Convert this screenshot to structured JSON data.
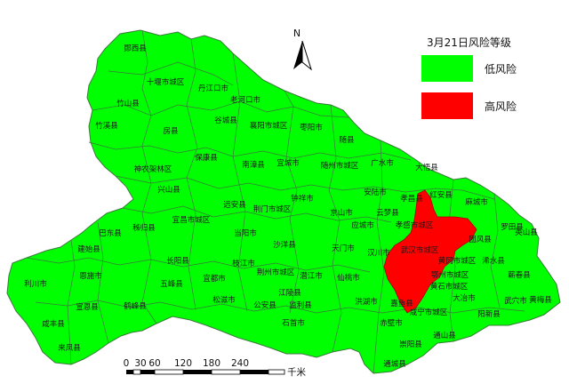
{
  "legend": {
    "title": "3月21日风险等级",
    "items": [
      {
        "label": "低风险",
        "color": "#00ff00"
      },
      {
        "label": "高风险",
        "color": "#ff0000"
      }
    ]
  },
  "north": {
    "label": "N"
  },
  "scale": {
    "ticks": [
      "0",
      "30",
      "60",
      "120",
      "180",
      "240"
    ],
    "unit": "千米"
  },
  "colors": {
    "low": "#00ff00",
    "high": "#ff0000",
    "border": "#3a7a3a"
  },
  "regions": [
    {
      "name": "郧西县"
    },
    {
      "name": "十堰市城区"
    },
    {
      "name": "丹江口市"
    },
    {
      "name": "老河口市"
    },
    {
      "name": "竹山县"
    },
    {
      "name": "竹溪县"
    },
    {
      "name": "房县"
    },
    {
      "name": "谷城县"
    },
    {
      "name": "襄阳市城区"
    },
    {
      "name": "枣阳市"
    },
    {
      "name": "随县"
    },
    {
      "name": "保康县"
    },
    {
      "name": "南漳县"
    },
    {
      "name": "宜城市"
    },
    {
      "name": "随州市城区"
    },
    {
      "name": "广水市"
    },
    {
      "name": "大悟县"
    },
    {
      "name": "神农架林区"
    },
    {
      "name": "兴山县"
    },
    {
      "name": "远安县"
    },
    {
      "name": "钟祥市"
    },
    {
      "name": "安陆市"
    },
    {
      "name": "孝昌县"
    },
    {
      "name": "红安县"
    },
    {
      "name": "麻城市"
    },
    {
      "name": "宜昌市城区"
    },
    {
      "name": "荆门市城区"
    },
    {
      "name": "京山市"
    },
    {
      "name": "云梦县"
    },
    {
      "name": "应城市"
    },
    {
      "name": "孝感市城区"
    },
    {
      "name": "罗田县"
    },
    {
      "name": "巴东县"
    },
    {
      "name": "秭归县"
    },
    {
      "name": "当阳市"
    },
    {
      "name": "团风县"
    },
    {
      "name": "英山县"
    },
    {
      "name": "建始县"
    },
    {
      "name": "长阳县"
    },
    {
      "name": "沙洋县"
    },
    {
      "name": "天门市"
    },
    {
      "name": "汉川市"
    },
    {
      "name": "武汉市城区"
    },
    {
      "name": "黄冈市城区"
    },
    {
      "name": "浠水县"
    },
    {
      "name": "恩施市"
    },
    {
      "name": "枝江市"
    },
    {
      "name": "荆州市城区"
    },
    {
      "name": "潜江市"
    },
    {
      "name": "鄂州市城区"
    },
    {
      "name": "蕲春县"
    },
    {
      "name": "利川市"
    },
    {
      "name": "五峰县"
    },
    {
      "name": "宜都市"
    },
    {
      "name": "仙桃市"
    },
    {
      "name": "黄石市城区"
    },
    {
      "name": "大冶市"
    },
    {
      "name": "武穴市"
    },
    {
      "name": "黄梅县"
    },
    {
      "name": "江陵县"
    },
    {
      "name": "宣恩县"
    },
    {
      "name": "鹤峰县"
    },
    {
      "name": "松滋市"
    },
    {
      "name": "公安县"
    },
    {
      "name": "监利县"
    },
    {
      "name": "洪湖市"
    },
    {
      "name": "嘉鱼县"
    },
    {
      "name": "咸宁市城区"
    },
    {
      "name": "阳新县"
    },
    {
      "name": "咸丰县"
    },
    {
      "name": "石首市"
    },
    {
      "name": "赤壁市"
    },
    {
      "name": "通山县"
    },
    {
      "name": "来凤县"
    },
    {
      "name": "崇阳县"
    },
    {
      "name": "通城县"
    }
  ]
}
